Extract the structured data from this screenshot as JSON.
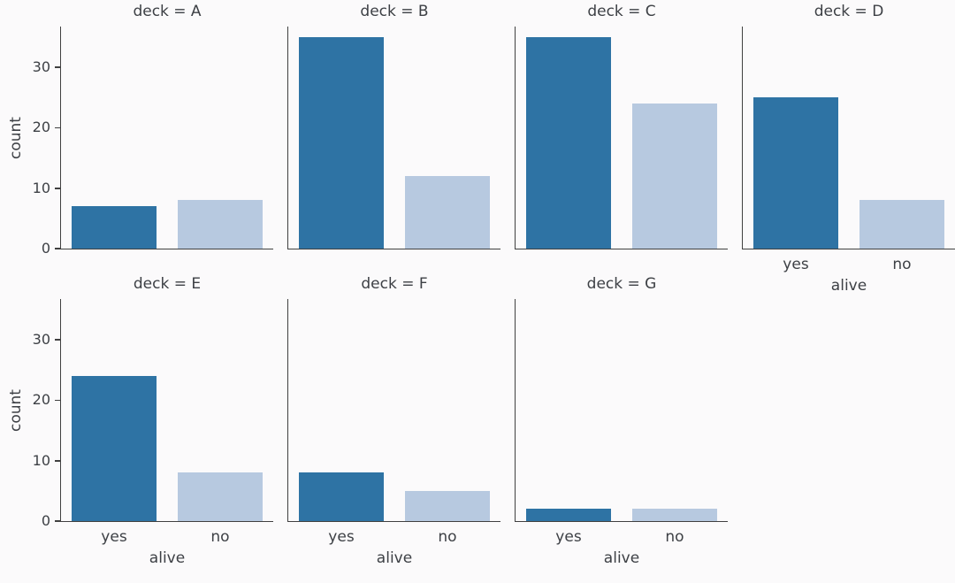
{
  "chart_data": {
    "type": "bar",
    "facet_variable": "deck",
    "x_variable": "alive",
    "categories": [
      "yes",
      "no"
    ],
    "xlabel": "alive",
    "ylabel": "count",
    "yticks": [
      "0",
      "10",
      "20",
      "30"
    ],
    "ytick_values": [
      0,
      10,
      20,
      30
    ],
    "ylim": [
      0,
      36.75
    ],
    "grid": "off",
    "legend": "none",
    "facets": [
      {
        "deck": "A",
        "title": "deck = A",
        "values": [
          7,
          8
        ],
        "show_y_axis": true,
        "show_x_labels": false
      },
      {
        "deck": "B",
        "title": "deck = B",
        "values": [
          35,
          12
        ],
        "show_y_axis": false,
        "show_x_labels": false
      },
      {
        "deck": "C",
        "title": "deck = C",
        "values": [
          35,
          24
        ],
        "show_y_axis": false,
        "show_x_labels": false
      },
      {
        "deck": "D",
        "title": "deck = D",
        "values": [
          25,
          8
        ],
        "show_y_axis": false,
        "show_x_labels": true
      },
      {
        "deck": "E",
        "title": "deck = E",
        "values": [
          24,
          8
        ],
        "show_y_axis": true,
        "show_x_labels": true
      },
      {
        "deck": "F",
        "title": "deck = F",
        "values": [
          8,
          5
        ],
        "show_y_axis": false,
        "show_x_labels": true
      },
      {
        "deck": "G",
        "title": "deck = G",
        "values": [
          2,
          2
        ],
        "show_y_axis": false,
        "show_x_labels": true
      }
    ],
    "colors": {
      "yes_bar": "#2e73a4",
      "no_bar": "#b7c9e0",
      "spine": "#404040",
      "text": "#3d4045",
      "background": "#fbfafb"
    }
  }
}
